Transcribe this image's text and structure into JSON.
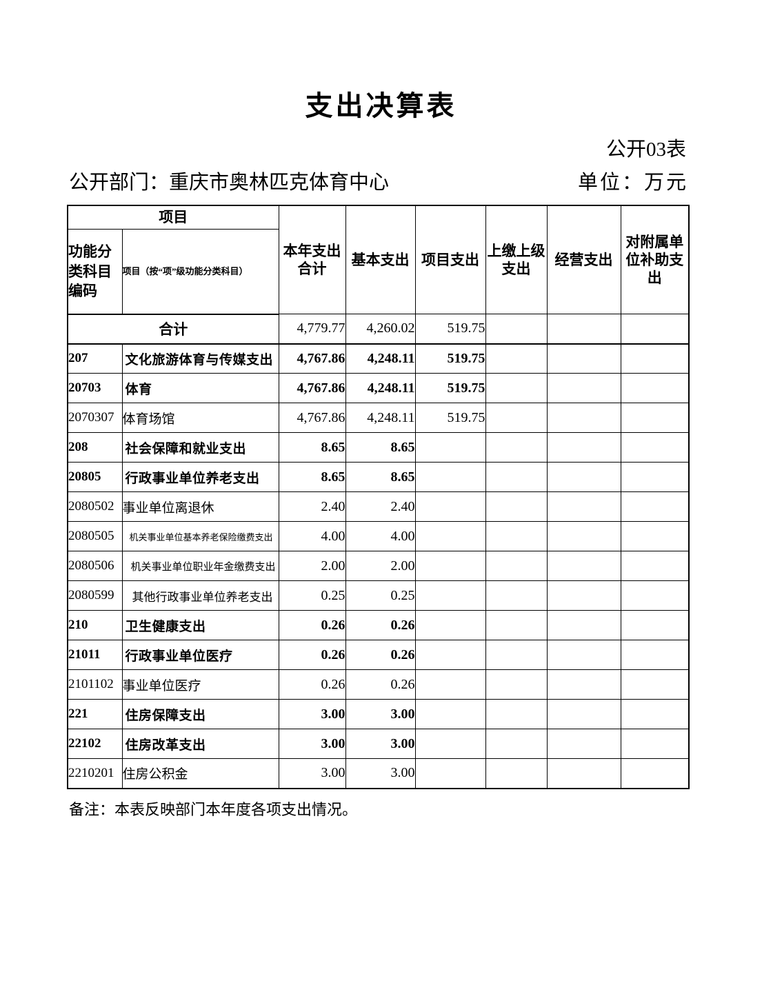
{
  "page": {
    "title": "支出决算表",
    "table_code": "公开03表",
    "department_label": "公开部门：重庆市奥林匹克体育中心",
    "unit_label": "单位：万元",
    "note": "备注：本表反映部门本年度各项支出情况。"
  },
  "colors": {
    "ink": "#000000",
    "paper": "#ffffff"
  },
  "table": {
    "header": {
      "project_group": "项目",
      "code_col": "功能分类科目编码",
      "name_col": "项目（按“项”级功能分类科目）",
      "cols": [
        "本年支出合计",
        "基本支出",
        "项目支出",
        "上缴上级支出",
        "经营支出",
        "对附属单位补助支出"
      ]
    },
    "rows": [
      {
        "code": "",
        "name": "合计",
        "level": "total",
        "merged": true,
        "values": [
          "4,779.77",
          "4,260.02",
          "519.75",
          "",
          "",
          ""
        ]
      },
      {
        "code": "207",
        "name": "文化旅游体育与传媒支出",
        "level": "bold",
        "values": [
          "4,767.86",
          "4,248.11",
          "519.75",
          "",
          "",
          ""
        ]
      },
      {
        "code": "20703",
        "name": "体育",
        "level": "bold",
        "values": [
          "4,767.86",
          "4,248.11",
          "519.75",
          "",
          "",
          ""
        ]
      },
      {
        "code": "2070307",
        "name": "体育场馆",
        "level": "item",
        "values": [
          "4,767.86",
          "4,248.11",
          "519.75",
          "",
          "",
          ""
        ]
      },
      {
        "code": "208",
        "name": "社会保障和就业支出",
        "level": "bold",
        "values": [
          "8.65",
          "8.65",
          "",
          "",
          "",
          ""
        ]
      },
      {
        "code": "20805",
        "name": "行政事业单位养老支出",
        "level": "bold",
        "values": [
          "8.65",
          "8.65",
          "",
          "",
          "",
          ""
        ]
      },
      {
        "code": "2080502",
        "name": "事业单位离退休",
        "level": "item",
        "values": [
          "2.40",
          "2.40",
          "",
          "",
          "",
          ""
        ]
      },
      {
        "code": "2080505",
        "name": "机关事业单位基本养老保险缴费支出",
        "level": "item",
        "name_size": "xs",
        "values": [
          "4.00",
          "4.00",
          "",
          "",
          "",
          ""
        ]
      },
      {
        "code": "2080506",
        "name": "机关事业单位职业年金缴费支出",
        "level": "item",
        "name_size": "s",
        "values": [
          "2.00",
          "2.00",
          "",
          "",
          "",
          ""
        ]
      },
      {
        "code": "2080599",
        "name": "其他行政事业单位养老支出",
        "level": "item",
        "name_size": "m",
        "values": [
          "0.25",
          "0.25",
          "",
          "",
          "",
          ""
        ]
      },
      {
        "code": "210",
        "name": "卫生健康支出",
        "level": "bold",
        "values": [
          "0.26",
          "0.26",
          "",
          "",
          "",
          ""
        ]
      },
      {
        "code": "21011",
        "name": "行政事业单位医疗",
        "level": "bold",
        "values": [
          "0.26",
          "0.26",
          "",
          "",
          "",
          ""
        ]
      },
      {
        "code": "2101102",
        "name": "事业单位医疗",
        "level": "item",
        "values": [
          "0.26",
          "0.26",
          "",
          "",
          "",
          ""
        ]
      },
      {
        "code": "221",
        "name": "住房保障支出",
        "level": "bold",
        "values": [
          "3.00",
          "3.00",
          "",
          "",
          "",
          ""
        ]
      },
      {
        "code": "22102",
        "name": "住房改革支出",
        "level": "bold",
        "values": [
          "3.00",
          "3.00",
          "",
          "",
          "",
          ""
        ]
      },
      {
        "code": "2210201",
        "name": "住房公积金",
        "level": "item",
        "values": [
          "3.00",
          "3.00",
          "",
          "",
          "",
          ""
        ]
      }
    ]
  }
}
